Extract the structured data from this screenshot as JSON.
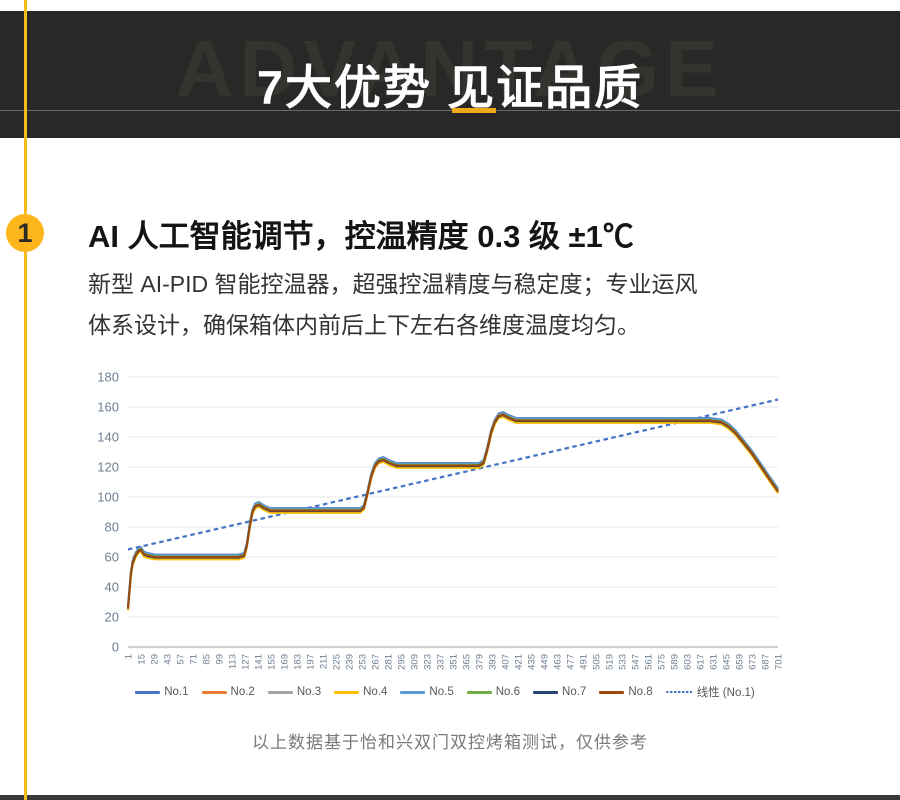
{
  "header": {
    "watermark": "ADVANTAGE",
    "title": "7大优势  见证品质"
  },
  "section": {
    "number": "1",
    "title": "AI 人工智能调节，控温精度 0.3 级 ±1℃",
    "body_line1": "新型 AI-PID 智能控温器，超强控温精度与稳定度；专业运风",
    "body_line2": "体系设计，确保箱体内前后上下左右各维度温度均匀。",
    "caption": "以上数据基于怡和兴双门双控烤箱测试，仅供参考"
  },
  "chart_data": {
    "type": "line",
    "title": "",
    "xlabel": "",
    "ylabel": "",
    "ylim": [
      0,
      180
    ],
    "y_ticks": [
      0,
      20,
      40,
      60,
      80,
      100,
      120,
      140,
      160,
      180
    ],
    "x_tick_labels": [
      "1",
      "15",
      "29",
      "43",
      "57",
      "71",
      "85",
      "99",
      "113",
      "127",
      "141",
      "155",
      "169",
      "183",
      "197",
      "211",
      "225",
      "239",
      "253",
      "267",
      "281",
      "295",
      "309",
      "323",
      "337",
      "351",
      "365",
      "379",
      "393",
      "407",
      "421",
      "435",
      "449",
      "463",
      "477",
      "491",
      "505",
      "519",
      "533",
      "547",
      "561",
      "575",
      "589",
      "603",
      "617",
      "631",
      "645",
      "659",
      "673",
      "687",
      "701"
    ],
    "x_range": [
      1,
      701
    ],
    "grid": true,
    "grid_color": "#e4e7eb",
    "axis_line_color": "#ccd1d8",
    "tick_label_color": "#6e7f92",
    "legend_position": "bottom",
    "profile_note": "All 8 series overlap a shared stepped temperature profile (x = time in seconds, y = temperature in degrees C); per-series vertical offsets below reproduce the tight band.",
    "profile": [
      [
        1,
        26
      ],
      [
        2,
        33
      ],
      [
        4,
        48
      ],
      [
        6,
        56
      ],
      [
        9,
        61
      ],
      [
        12,
        64
      ],
      [
        15,
        65
      ],
      [
        18,
        62
      ],
      [
        22,
        61
      ],
      [
        30,
        60
      ],
      [
        60,
        60
      ],
      [
        90,
        60
      ],
      [
        120,
        60
      ],
      [
        126,
        61
      ],
      [
        129,
        68
      ],
      [
        132,
        80
      ],
      [
        135,
        90
      ],
      [
        138,
        94
      ],
      [
        142,
        95
      ],
      [
        147,
        93
      ],
      [
        154,
        91
      ],
      [
        180,
        91
      ],
      [
        220,
        91
      ],
      [
        251,
        91
      ],
      [
        255,
        93
      ],
      [
        259,
        103
      ],
      [
        263,
        114
      ],
      [
        267,
        121
      ],
      [
        271,
        124
      ],
      [
        276,
        125
      ],
      [
        282,
        123
      ],
      [
        290,
        121
      ],
      [
        330,
        121
      ],
      [
        379,
        121
      ],
      [
        384,
        123
      ],
      [
        388,
        132
      ],
      [
        392,
        143
      ],
      [
        396,
        150
      ],
      [
        400,
        154
      ],
      [
        405,
        155
      ],
      [
        411,
        153
      ],
      [
        419,
        151
      ],
      [
        460,
        151
      ],
      [
        520,
        151
      ],
      [
        580,
        151
      ],
      [
        628,
        151
      ],
      [
        640,
        150
      ],
      [
        648,
        147
      ],
      [
        655,
        143
      ],
      [
        663,
        137
      ],
      [
        672,
        130
      ],
      [
        682,
        121
      ],
      [
        692,
        112
      ],
      [
        701,
        104
      ]
    ],
    "series": [
      {
        "name": "No.1",
        "color": "#4472c4",
        "offset": 1.6
      },
      {
        "name": "No.2",
        "color": "#ed7d31",
        "offset": -0.8
      },
      {
        "name": "No.3",
        "color": "#a5a5a5",
        "offset": 0.8
      },
      {
        "name": "No.4",
        "color": "#ffc000",
        "offset": -1.6
      },
      {
        "name": "No.5",
        "color": "#5b9bd5",
        "offset": 1.2
      },
      {
        "name": "No.6",
        "color": "#70ad47",
        "offset": 0.4
      },
      {
        "name": "No.7",
        "color": "#264478",
        "offset": -0.4
      },
      {
        "name": "No.8",
        "color": "#9e480e",
        "offset": 0
      }
    ],
    "trend": {
      "name": "线性 (No.1)",
      "color": "#4472c4",
      "from": [
        1,
        65
      ],
      "to": [
        701,
        165
      ],
      "style": "dashed"
    }
  },
  "colors": {
    "accent_yellow": "#f7ba1e",
    "badge_yellow": "#fcb61b",
    "header_bg": "#292826",
    "bottom_bar": "#3a3937"
  }
}
